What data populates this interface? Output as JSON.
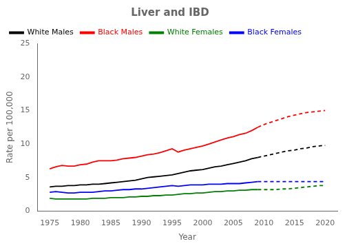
{
  "chart_data": {
    "type": "line",
    "title": "Liver and IBD",
    "xlabel": "Year",
    "ylabel": "Rate per 100,000",
    "xlim": [
      1973,
      2022
    ],
    "ylim": [
      0,
      25
    ],
    "xticks": [
      1975,
      1980,
      1985,
      1990,
      1995,
      2000,
      2005,
      2010,
      2015,
      2020
    ],
    "yticks": [
      0,
      5,
      10,
      15,
      20,
      25
    ],
    "grid": false,
    "legend": "upper left",
    "series": [
      {
        "name": "White Males",
        "color": "#000000",
        "line_style": "solid",
        "x": [
          1975,
          1976,
          1977,
          1978,
          1979,
          1980,
          1981,
          1982,
          1983,
          1984,
          1985,
          1986,
          1987,
          1988,
          1989,
          1990,
          1991,
          1992,
          1993,
          1994,
          1995,
          1996,
          1997,
          1998,
          1999,
          2000,
          2001,
          2002,
          2003,
          2004,
          2005,
          2006,
          2007,
          2008,
          2009
        ],
        "values": [
          3.6,
          3.7,
          3.7,
          3.8,
          3.8,
          3.9,
          3.9,
          4.0,
          4.0,
          4.1,
          4.2,
          4.3,
          4.4,
          4.5,
          4.6,
          4.8,
          5.0,
          5.1,
          5.2,
          5.3,
          5.4,
          5.6,
          5.8,
          6.0,
          6.1,
          6.2,
          6.4,
          6.6,
          6.7,
          6.9,
          7.1,
          7.3,
          7.5,
          7.8,
          8.0
        ]
      },
      {
        "name": "Black Males",
        "color": "#ff0000",
        "line_style": "solid",
        "x": [
          1975,
          1976,
          1977,
          1978,
          1979,
          1980,
          1981,
          1982,
          1983,
          1984,
          1985,
          1986,
          1987,
          1988,
          1989,
          1990,
          1991,
          1992,
          1993,
          1994,
          1995,
          1996,
          1997,
          1998,
          1999,
          2000,
          2001,
          2002,
          2003,
          2004,
          2005,
          2006,
          2007,
          2008,
          2009
        ],
        "values": [
          6.3,
          6.6,
          6.8,
          6.7,
          6.7,
          6.9,
          7.0,
          7.3,
          7.5,
          7.5,
          7.5,
          7.6,
          7.8,
          7.9,
          8.0,
          8.2,
          8.4,
          8.5,
          8.7,
          9.0,
          9.3,
          8.8,
          9.1,
          9.3,
          9.5,
          9.7,
          10.0,
          10.3,
          10.6,
          10.9,
          11.1,
          11.4,
          11.6,
          12.0,
          12.5
        ]
      },
      {
        "name": "White Females",
        "color": "#008000",
        "line_style": "solid",
        "x": [
          1975,
          1976,
          1977,
          1978,
          1979,
          1980,
          1981,
          1982,
          1983,
          1984,
          1985,
          1986,
          1987,
          1988,
          1989,
          1990,
          1991,
          1992,
          1993,
          1994,
          1995,
          1996,
          1997,
          1998,
          1999,
          2000,
          2001,
          2002,
          2003,
          2004,
          2005,
          2006,
          2007,
          2008,
          2009
        ],
        "values": [
          1.9,
          1.8,
          1.8,
          1.8,
          1.8,
          1.8,
          1.8,
          1.9,
          1.9,
          1.9,
          2.0,
          2.0,
          2.0,
          2.1,
          2.1,
          2.2,
          2.2,
          2.3,
          2.3,
          2.4,
          2.4,
          2.5,
          2.6,
          2.6,
          2.7,
          2.7,
          2.8,
          2.9,
          2.9,
          3.0,
          3.0,
          3.1,
          3.1,
          3.2,
          3.2
        ]
      },
      {
        "name": "Black Females",
        "color": "#0000ff",
        "line_style": "solid",
        "x": [
          1975,
          1976,
          1977,
          1978,
          1979,
          1980,
          1981,
          1982,
          1983,
          1984,
          1985,
          1986,
          1987,
          1988,
          1989,
          1990,
          1991,
          1992,
          1993,
          1994,
          1995,
          1996,
          1997,
          1998,
          1999,
          2000,
          2001,
          2002,
          2003,
          2004,
          2005,
          2006,
          2007,
          2008,
          2009
        ],
        "values": [
          2.8,
          2.9,
          2.8,
          2.7,
          2.7,
          2.8,
          2.8,
          2.8,
          2.9,
          3.0,
          3.0,
          3.1,
          3.2,
          3.2,
          3.3,
          3.3,
          3.4,
          3.5,
          3.6,
          3.7,
          3.8,
          3.7,
          3.8,
          3.9,
          3.9,
          3.9,
          4.0,
          4.0,
          4.0,
          4.1,
          4.1,
          4.1,
          4.2,
          4.3,
          4.4
        ]
      },
      {
        "name": "White Males",
        "color": "#000000",
        "line_style": "dashed",
        "x": [
          2009,
          2010,
          2011,
          2012,
          2013,
          2014,
          2015,
          2016,
          2017,
          2018,
          2019,
          2020
        ],
        "values": [
          8.0,
          8.2,
          8.4,
          8.6,
          8.8,
          9.0,
          9.1,
          9.3,
          9.4,
          9.6,
          9.7,
          9.8
        ]
      },
      {
        "name": "Black Males",
        "color": "#ff0000",
        "line_style": "dashed",
        "x": [
          2009,
          2010,
          2011,
          2012,
          2013,
          2014,
          2015,
          2016,
          2017,
          2018,
          2019,
          2020
        ],
        "values": [
          12.5,
          12.9,
          13.2,
          13.5,
          13.8,
          14.1,
          14.3,
          14.5,
          14.7,
          14.8,
          14.9,
          15.0
        ]
      },
      {
        "name": "White Females",
        "color": "#008000",
        "line_style": "dashed",
        "x": [
          2009,
          2010,
          2011,
          2012,
          2013,
          2014,
          2015,
          2016,
          2017,
          2018,
          2019,
          2020
        ],
        "values": [
          3.2,
          3.2,
          3.2,
          3.2,
          3.3,
          3.3,
          3.4,
          3.5,
          3.6,
          3.7,
          3.8,
          3.8
        ]
      },
      {
        "name": "Black Females",
        "color": "#0000ff",
        "line_style": "dashed",
        "x": [
          2009,
          2010,
          2011,
          2012,
          2013,
          2014,
          2015,
          2016,
          2017,
          2018,
          2019,
          2020
        ],
        "values": [
          4.4,
          4.4,
          4.4,
          4.4,
          4.4,
          4.4,
          4.4,
          4.4,
          4.4,
          4.4,
          4.4,
          4.4
        ]
      }
    ]
  }
}
